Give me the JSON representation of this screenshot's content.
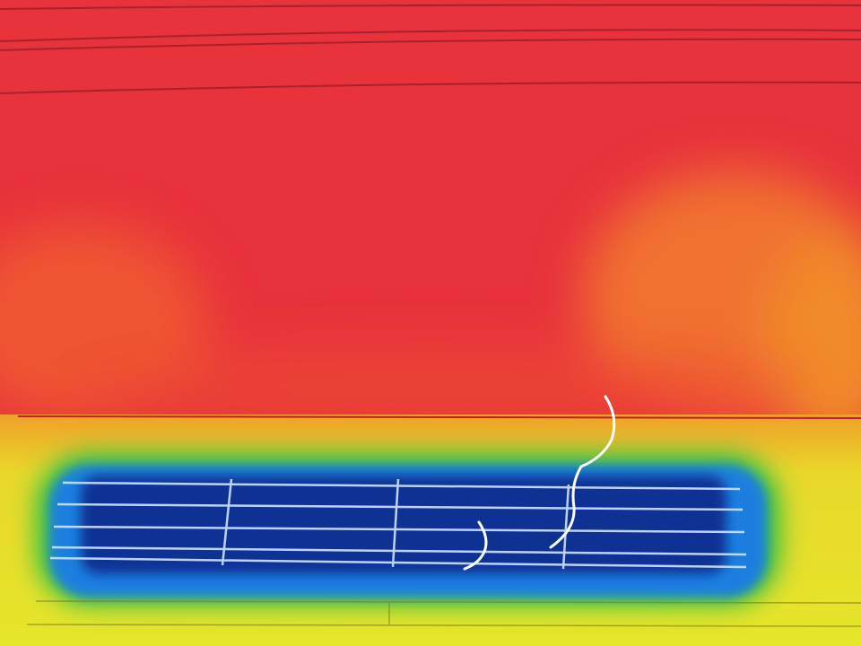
{
  "image": {
    "kind": "thermal-infrared-photo",
    "palette": {
      "hot_red": "#e8323c",
      "warm_orange": "#f0752e",
      "mid_yellow": "#e6e62a",
      "transition_green": "#2fbf4a",
      "cool_blue": "#1b7fe0",
      "cold_navy": "#0e2a8c",
      "annotation_white": "#ffffff"
    }
  }
}
